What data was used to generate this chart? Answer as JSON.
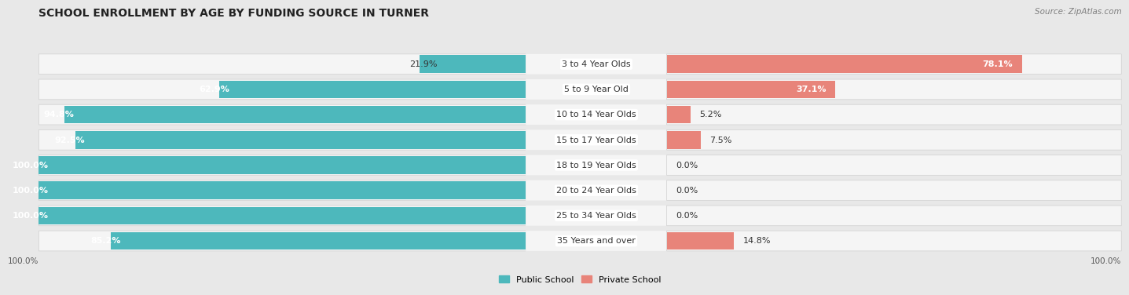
{
  "title": "SCHOOL ENROLLMENT BY AGE BY FUNDING SOURCE IN TURNER",
  "source": "Source: ZipAtlas.com",
  "categories": [
    "3 to 4 Year Olds",
    "5 to 9 Year Old",
    "10 to 14 Year Olds",
    "15 to 17 Year Olds",
    "18 to 19 Year Olds",
    "20 to 24 Year Olds",
    "25 to 34 Year Olds",
    "35 Years and over"
  ],
  "public_values": [
    21.9,
    62.9,
    94.8,
    92.5,
    100.0,
    100.0,
    100.0,
    85.2
  ],
  "private_values": [
    78.1,
    37.1,
    5.2,
    7.5,
    0.0,
    0.0,
    0.0,
    14.8
  ],
  "public_color": "#4db8bc",
  "private_color": "#e8847a",
  "private_color_light": "#f0a89f",
  "bg_color": "#e8e8e8",
  "row_bg_color": "#f5f5f5",
  "title_fontsize": 10,
  "bar_label_fontsize": 8,
  "cat_label_fontsize": 8,
  "source_fontsize": 7.5,
  "legend_fontsize": 8,
  "axis_label_fontsize": 7.5,
  "bar_height": 0.7,
  "xlim": 100
}
